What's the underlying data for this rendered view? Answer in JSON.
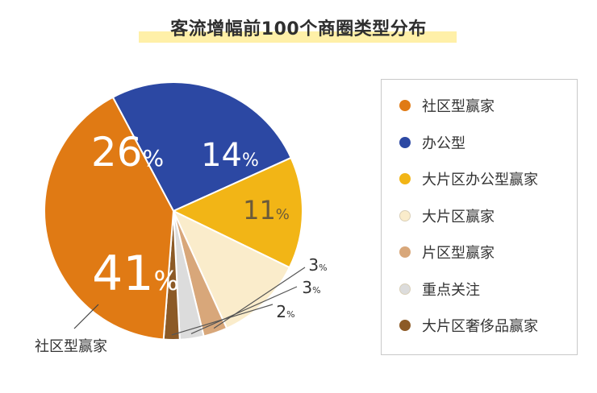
{
  "chart_data": {
    "type": "pie",
    "title": "客流增幅前100个商圈类型分布",
    "unit": "%",
    "slices": [
      {
        "label": "社区型赢家",
        "value": 41,
        "display": "41",
        "color": "#e07a14"
      },
      {
        "label": "办公型",
        "value": 26,
        "display": "26",
        "color": "#2c48a3"
      },
      {
        "label": "大片区办公型赢家",
        "value": 14,
        "display": "14",
        "color": "#f2b516"
      },
      {
        "label": "大片区赢家",
        "value": 11,
        "display": "11",
        "color": "#faeccb"
      },
      {
        "label": "片区型赢家",
        "value": 3,
        "display": "3",
        "color": "#d8a77a"
      },
      {
        "label": "重点关注",
        "value": 3,
        "display": "3",
        "color": "#dcdcdc"
      },
      {
        "label": "大片区奢侈品赢家",
        "value": 2,
        "display": "2",
        "color": "#8c5a26"
      }
    ],
    "legend_position": "right",
    "callout": "社区型赢家"
  }
}
